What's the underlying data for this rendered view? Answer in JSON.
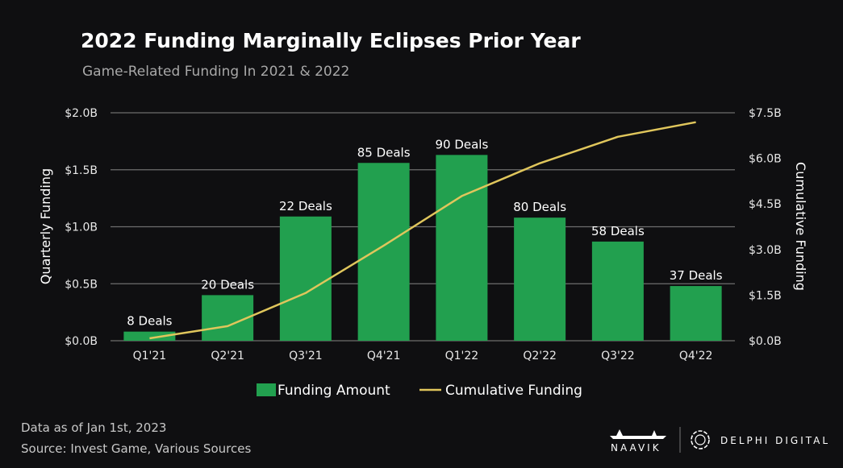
{
  "chart_data": {
    "type": "bar",
    "title": "2022 Funding Marginally Eclipses Prior Year",
    "subtitle": "Game-Related Funding In 2021 & 2022",
    "categories": [
      "Q1'21",
      "Q2'21",
      "Q3'21",
      "Q4'21",
      "Q1'22",
      "Q2'22",
      "Q3'22",
      "Q4'22"
    ],
    "series": [
      {
        "name": "Funding Amount",
        "type": "bar",
        "axis": "left",
        "unit": "B USD",
        "color": "#22a04f",
        "values": [
          0.08,
          0.4,
          1.09,
          1.56,
          1.63,
          1.08,
          0.87,
          0.48
        ]
      },
      {
        "name": "Cumulative Funding",
        "type": "line",
        "axis": "right",
        "unit": "B USD",
        "color": "#e0c65c",
        "values": [
          0.08,
          0.48,
          1.57,
          3.13,
          4.76,
          5.84,
          6.71,
          7.19
        ]
      }
    ],
    "data_labels": [
      "8 Deals",
      "20 Deals",
      "22 Deals",
      "85 Deals",
      "90 Deals",
      "80 Deals",
      "58 Deals",
      "37 Deals"
    ],
    "ylabel": "Quarterly Funding",
    "y2label": "Cumulative Funding",
    "ylim": [
      0,
      2.0
    ],
    "y2lim": [
      0,
      7.5
    ],
    "yticks": [
      "$0.0B",
      "$0.5B",
      "$1.0B",
      "$1.5B",
      "$2.0B"
    ],
    "y2ticks": [
      "$0.0B",
      "$1.5B",
      "$3.0B",
      "$4.5B",
      "$6.0B",
      "$7.5B"
    ],
    "grid": true,
    "legend": "bottom",
    "background": "#0f0f11"
  },
  "footer": {
    "note": "Data as of Jan 1st, 2023",
    "source": "Source: Invest Game, Various Sources",
    "logo_left": "NAAVIK",
    "logo_right": "DELPHI DIGITAL"
  }
}
